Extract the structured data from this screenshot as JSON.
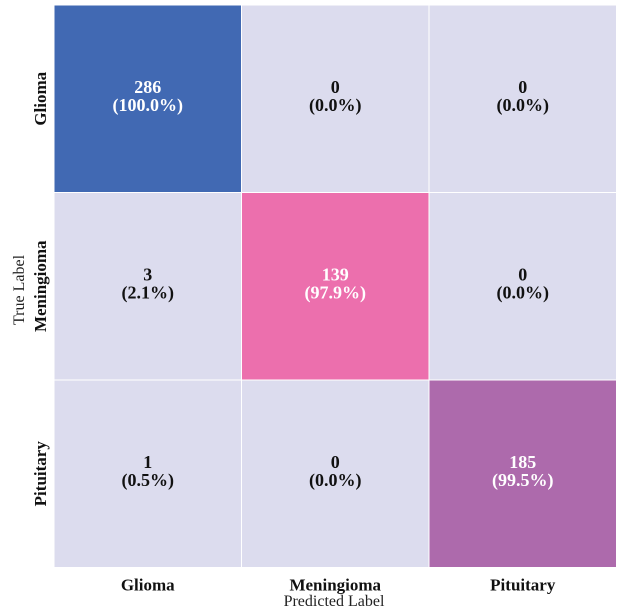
{
  "chart_data": {
    "type": "heatmap",
    "title": "",
    "xlabel": "Predicted Label",
    "ylabel": "True Label",
    "x_categories": [
      "Glioma",
      "Meningioma",
      "Pituitary"
    ],
    "y_categories": [
      "Glioma",
      "Meningioma",
      "Pituitary"
    ],
    "values": [
      [
        286,
        0,
        0
      ],
      [
        3,
        139,
        0
      ],
      [
        1,
        0,
        185
      ]
    ],
    "percent_labels": [
      [
        "(100.0%)",
        "(0.0%)",
        "(0.0%)"
      ],
      [
        "(2.1%)",
        "(97.9%)",
        "(0.0%)"
      ],
      [
        "(0.5%)",
        "(0.0%)",
        "(99.5%)"
      ]
    ],
    "diagonal_colors": [
      "#4169b3",
      "#ec6fad",
      "#ad6aac"
    ],
    "off_diagonal_color": "#dcdcee",
    "grid": true,
    "colorbar": false
  }
}
